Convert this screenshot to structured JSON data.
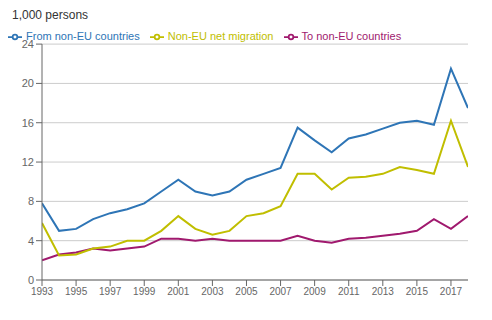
{
  "chart_data": {
    "type": "line",
    "ylabel": "1,000 persons",
    "x": [
      1993,
      1994,
      1995,
      1996,
      1997,
      1998,
      1999,
      2000,
      2001,
      2002,
      2003,
      2004,
      2005,
      2006,
      2007,
      2008,
      2009,
      2010,
      2011,
      2012,
      2013,
      2014,
      2015,
      2016,
      2017,
      2018
    ],
    "series": [
      {
        "name": "From non-EU countries",
        "color": "#2E75B6",
        "values": [
          7.8,
          5.0,
          5.2,
          6.2,
          6.8,
          7.2,
          7.8,
          9.0,
          10.2,
          9.0,
          8.6,
          9.0,
          10.2,
          10.8,
          11.4,
          15.5,
          14.2,
          13.0,
          14.4,
          14.8,
          15.4,
          16.0,
          16.2,
          15.8,
          21.5,
          17.5
        ]
      },
      {
        "name": "To non-EU countries",
        "color": "#A0196E",
        "values": [
          2.0,
          2.6,
          2.8,
          3.2,
          3.0,
          3.2,
          3.4,
          4.2,
          4.2,
          4.0,
          4.2,
          4.0,
          4.0,
          4.0,
          4.0,
          4.5,
          4.0,
          3.8,
          4.2,
          4.3,
          4.5,
          4.7,
          5.0,
          6.2,
          5.2,
          6.5
        ]
      },
      {
        "name": "Non-EU net migration",
        "color": "#C0BE00",
        "values": [
          5.8,
          2.5,
          2.6,
          3.2,
          3.4,
          4.0,
          4.0,
          5.0,
          6.5,
          5.2,
          4.6,
          5.0,
          6.5,
          6.8,
          7.5,
          10.8,
          10.8,
          9.2,
          10.4,
          10.5,
          10.8,
          11.5,
          11.2,
          10.8,
          16.2,
          11.5
        ]
      }
    ],
    "xlim": [
      1993,
      2018
    ],
    "xticks": [
      1993,
      1995,
      1997,
      1999,
      2001,
      2003,
      2005,
      2007,
      2009,
      2011,
      2013,
      2015,
      2017
    ],
    "ylim": [
      0,
      24
    ],
    "yticks": [
      0,
      4,
      8,
      12,
      16,
      20,
      24
    ],
    "grid": true,
    "legend": "upper left"
  }
}
